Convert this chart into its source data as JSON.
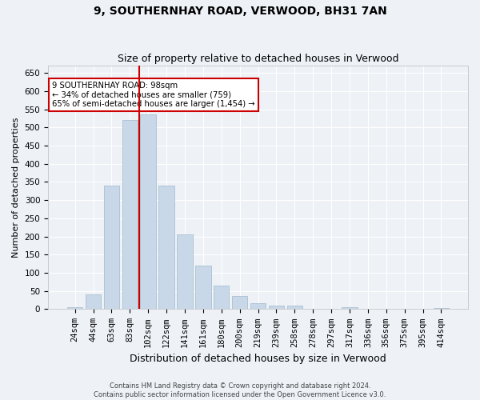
{
  "title": "9, SOUTHERNHAY ROAD, VERWOOD, BH31 7AN",
  "subtitle": "Size of property relative to detached houses in Verwood",
  "xlabel": "Distribution of detached houses by size in Verwood",
  "ylabel": "Number of detached properties",
  "categories": [
    "24sqm",
    "44sqm",
    "63sqm",
    "83sqm",
    "102sqm",
    "122sqm",
    "141sqm",
    "161sqm",
    "180sqm",
    "200sqm",
    "219sqm",
    "239sqm",
    "258sqm",
    "278sqm",
    "297sqm",
    "317sqm",
    "336sqm",
    "356sqm",
    "375sqm",
    "395sqm",
    "414sqm"
  ],
  "values": [
    5,
    40,
    340,
    520,
    535,
    340,
    205,
    120,
    65,
    37,
    17,
    10,
    10,
    0,
    0,
    5,
    0,
    0,
    2,
    0,
    3
  ],
  "bar_color": "#c8d8e8",
  "bar_edge_color": "#a0b8cc",
  "vline_color": "#cc0000",
  "vline_index": 4,
  "annotation_text": "9 SOUTHERNHAY ROAD: 98sqm\n← 34% of detached houses are smaller (759)\n65% of semi-detached houses are larger (1,454) →",
  "annotation_box_color": "#ffffff",
  "annotation_box_edge": "#cc0000",
  "ylim": [
    0,
    670
  ],
  "yticks": [
    0,
    50,
    100,
    150,
    200,
    250,
    300,
    350,
    400,
    450,
    500,
    550,
    600,
    650
  ],
  "footer1": "Contains HM Land Registry data © Crown copyright and database right 2024.",
  "footer2": "Contains public sector information licensed under the Open Government Licence v3.0.",
  "bg_color": "#eef2f7",
  "plot_bg_color": "#eef2f7",
  "title_fontsize": 10,
  "subtitle_fontsize": 9,
  "ylabel_fontsize": 8,
  "xlabel_fontsize": 9,
  "tick_fontsize": 7.5
}
